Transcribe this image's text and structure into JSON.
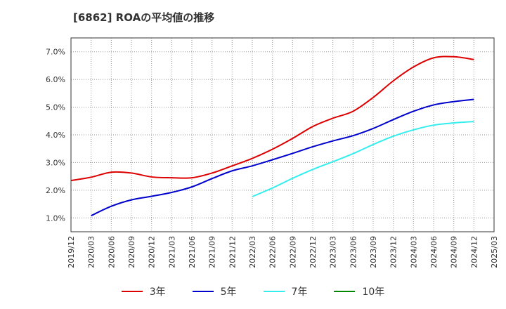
{
  "title": "[6862]  ROAの平均値の推移",
  "chart_data": {
    "type": "line",
    "x": [
      "2019/12",
      "2020/03",
      "2020/06",
      "2020/09",
      "2020/12",
      "2021/03",
      "2021/06",
      "2021/09",
      "2021/12",
      "2022/03",
      "2022/06",
      "2022/09",
      "2022/12",
      "2023/03",
      "2023/06",
      "2023/09",
      "2023/12",
      "2024/03",
      "2024/06",
      "2024/09",
      "2024/12",
      "2025/03"
    ],
    "ylim": [
      0.5,
      7.5
    ],
    "yticks": [
      1.0,
      2.0,
      3.0,
      4.0,
      5.0,
      6.0,
      7.0
    ],
    "ytick_labels": [
      "1.0%",
      "2.0%",
      "3.0%",
      "4.0%",
      "5.0%",
      "6.0%",
      "7.0%"
    ],
    "grid": true,
    "legend_position": "bottom",
    "series": [
      {
        "name": "3年",
        "color": "#dd0000",
        "values": [
          2.35,
          2.47,
          2.65,
          2.62,
          2.48,
          2.45,
          2.45,
          2.62,
          2.88,
          3.15,
          3.48,
          3.87,
          4.3,
          4.6,
          4.85,
          5.35,
          5.95,
          6.45,
          6.78,
          6.82,
          6.72,
          null
        ]
      },
      {
        "name": "5年",
        "color": "#0000cc",
        "values": [
          null,
          1.08,
          1.42,
          1.65,
          1.78,
          1.92,
          2.12,
          2.42,
          2.7,
          2.88,
          3.1,
          3.33,
          3.57,
          3.78,
          3.97,
          4.23,
          4.55,
          4.85,
          5.08,
          5.2,
          5.28,
          null
        ]
      },
      {
        "name": "7年",
        "color": "#33eeee",
        "values": [
          null,
          null,
          null,
          null,
          null,
          null,
          null,
          null,
          null,
          1.77,
          2.08,
          2.43,
          2.75,
          3.03,
          3.32,
          3.65,
          3.95,
          4.18,
          4.35,
          4.43,
          4.48,
          null
        ]
      },
      {
        "name": "10年",
        "color": "#008800",
        "values": [
          null,
          null,
          null,
          null,
          null,
          null,
          null,
          null,
          null,
          null,
          null,
          null,
          null,
          null,
          null,
          null,
          null,
          null,
          null,
          null,
          null,
          null
        ]
      }
    ]
  }
}
